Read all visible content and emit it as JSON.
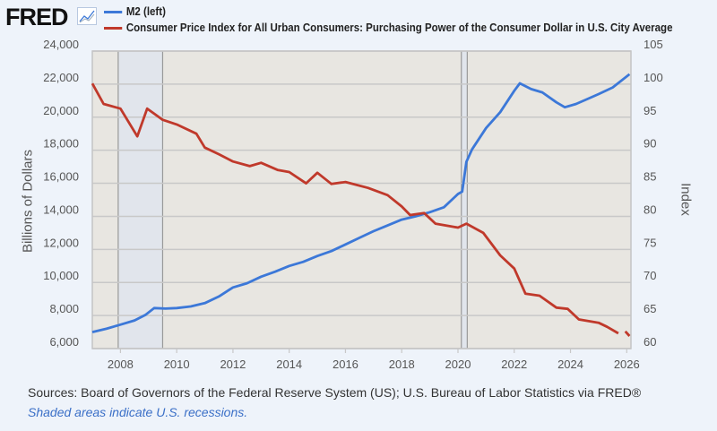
{
  "header": {
    "logo": "FRED",
    "logo_icon": "chart-line-icon"
  },
  "chart_data": {
    "type": "line",
    "title": "",
    "xlabel": "",
    "ylabel_left": "Billions of Dollars",
    "ylabel_right": "Index",
    "xlim": [
      2007.0,
      2026.15
    ],
    "ylim_left": [
      6000,
      24000
    ],
    "ylim_right": [
      60,
      105
    ],
    "x_ticks": [
      "2008",
      "2010",
      "2012",
      "2014",
      "2016",
      "2018",
      "2020",
      "2022",
      "2024",
      "2026"
    ],
    "y_ticks_left": [
      "6,000",
      "8,000",
      "10,000",
      "12,000",
      "14,000",
      "16,000",
      "18,000",
      "20,000",
      "22,000",
      "24,000"
    ],
    "y_ticks_right": [
      "60",
      "65",
      "70",
      "75",
      "80",
      "85",
      "90",
      "95",
      "100",
      "105"
    ],
    "grid": true,
    "legend_placement": "top",
    "recessions": [
      [
        2007.92,
        2009.5
      ],
      [
        2020.12,
        2020.33
      ]
    ],
    "series": [
      {
        "name": "M2 (left)",
        "axis": "left",
        "color": "#3c78d8",
        "x": [
          2007.0,
          2007.5,
          2008.0,
          2008.5,
          2008.9,
          2009.2,
          2009.6,
          2010.0,
          2010.5,
          2011.0,
          2011.5,
          2012.0,
          2012.5,
          2013.0,
          2013.5,
          2014.0,
          2014.5,
          2015.0,
          2015.5,
          2016.0,
          2016.5,
          2017.0,
          2017.5,
          2018.0,
          2018.5,
          2019.0,
          2019.5,
          2020.0,
          2020.15,
          2020.3,
          2020.5,
          2021.0,
          2021.5,
          2022.0,
          2022.2,
          2022.6,
          2023.0,
          2023.5,
          2023.8,
          2024.2,
          2024.6,
          2025.0,
          2025.5,
          2026.1
        ],
        "values": [
          7000,
          7200,
          7450,
          7700,
          8050,
          8450,
          8420,
          8450,
          8550,
          8750,
          9150,
          9700,
          9950,
          10350,
          10650,
          11000,
          11250,
          11600,
          11900,
          12300,
          12700,
          13100,
          13450,
          13800,
          14000,
          14250,
          14550,
          15350,
          15500,
          17300,
          18050,
          19350,
          20300,
          21600,
          22050,
          21700,
          21500,
          20900,
          20600,
          20800,
          21100,
          21400,
          21800,
          22600
        ]
      },
      {
        "name": "Consumer Price Index for All Urban Consumers: Purchasing Power of the Consumer Dollar in U.S. City Average",
        "axis": "right",
        "color": "#c0392b",
        "x": [
          2007.0,
          2007.4,
          2008.0,
          2008.6,
          2008.95,
          2009.5,
          2010.0,
          2010.7,
          2011.0,
          2011.5,
          2012.0,
          2012.6,
          2013.0,
          2013.6,
          2014.0,
          2014.6,
          2015.0,
          2015.5,
          2016.0,
          2016.8,
          2017.5,
          2018.0,
          2018.3,
          2018.8,
          2019.2,
          2020.0,
          2020.3,
          2020.9,
          2021.5,
          2022.0,
          2022.4,
          2022.9,
          2023.5,
          2023.9,
          2024.3,
          2025.0,
          2025.3,
          2025.7,
          null,
          2025.95,
          2026.1
        ],
        "values": [
          100.1,
          97.0,
          96.3,
          92.1,
          96.3,
          94.6,
          93.9,
          92.5,
          90.4,
          89.4,
          88.3,
          87.6,
          88.1,
          87.0,
          86.7,
          85.0,
          86.6,
          84.9,
          85.2,
          84.3,
          83.2,
          81.5,
          80.2,
          80.5,
          78.9,
          78.3,
          78.9,
          77.5,
          74.1,
          72.1,
          68.3,
          68.0,
          66.2,
          66.0,
          64.4,
          63.9,
          63.3,
          62.3,
          null,
          62.6,
          61.9
        ]
      }
    ]
  },
  "footer": {
    "sources": "Sources: Board of Governors of the Federal Reserve System (US); U.S. Bureau of Labor Statistics via FRED®",
    "note": "Shaded areas indicate U.S. recessions."
  }
}
